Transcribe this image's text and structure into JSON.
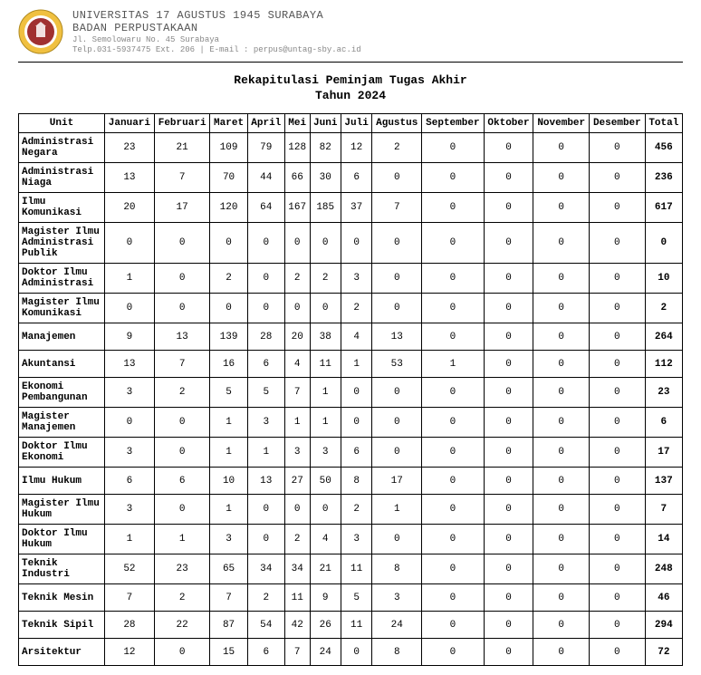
{
  "header": {
    "university": "UNIVERSITAS 17 AGUSTUS 1945 SURABAYA",
    "badan": "BADAN PERPUSTAKAAN",
    "address": "Jl. Semolowaru No. 45 Surabaya",
    "contact": "Telp.031-5937475 Ext. 206 | E-mail : perpus@untag-sby.ac.id",
    "logo_colors": {
      "outer": "#f0c040",
      "inner": "#a03030",
      "ring": "#ffffff"
    }
  },
  "report": {
    "title": "Rekapitulasi Peminjam Tugas Akhir",
    "year_label": "Tahun 2024"
  },
  "table": {
    "columns": [
      "Unit",
      "Januari",
      "Februari",
      "Maret",
      "April",
      "Mei",
      "Juni",
      "Juli",
      "Agustus",
      "September",
      "Oktober",
      "November",
      "Desember",
      "Total"
    ],
    "rows": [
      [
        "Administrasi Negara",
        23,
        21,
        109,
        79,
        128,
        82,
        12,
        2,
        0,
        0,
        0,
        0,
        456
      ],
      [
        "Administrasi Niaga",
        13,
        7,
        70,
        44,
        66,
        30,
        6,
        0,
        0,
        0,
        0,
        0,
        236
      ],
      [
        "Ilmu Komunikasi",
        20,
        17,
        120,
        64,
        167,
        185,
        37,
        7,
        0,
        0,
        0,
        0,
        617
      ],
      [
        "Magister Ilmu Administrasi Publik",
        0,
        0,
        0,
        0,
        0,
        0,
        0,
        0,
        0,
        0,
        0,
        0,
        0
      ],
      [
        "Doktor Ilmu Administrasi",
        1,
        0,
        2,
        0,
        2,
        2,
        3,
        0,
        0,
        0,
        0,
        0,
        10
      ],
      [
        "Magister Ilmu Komunikasi",
        0,
        0,
        0,
        0,
        0,
        0,
        2,
        0,
        0,
        0,
        0,
        0,
        2
      ],
      [
        "Manajemen",
        9,
        13,
        139,
        28,
        20,
        38,
        4,
        13,
        0,
        0,
        0,
        0,
        264
      ],
      [
        "Akuntansi",
        13,
        7,
        16,
        6,
        4,
        11,
        1,
        53,
        1,
        0,
        0,
        0,
        112
      ],
      [
        "Ekonomi Pembangunan",
        3,
        2,
        5,
        5,
        7,
        1,
        0,
        0,
        0,
        0,
        0,
        0,
        23
      ],
      [
        "Magister Manajemen",
        0,
        0,
        1,
        3,
        1,
        1,
        0,
        0,
        0,
        0,
        0,
        0,
        6
      ],
      [
        "Doktor Ilmu Ekonomi",
        3,
        0,
        1,
        1,
        3,
        3,
        6,
        0,
        0,
        0,
        0,
        0,
        17
      ],
      [
        "Ilmu Hukum",
        6,
        6,
        10,
        13,
        27,
        50,
        8,
        17,
        0,
        0,
        0,
        0,
        137
      ],
      [
        "Magister Ilmu Hukum",
        3,
        0,
        1,
        0,
        0,
        0,
        2,
        1,
        0,
        0,
        0,
        0,
        7
      ],
      [
        "Doktor Ilmu Hukum",
        1,
        1,
        3,
        0,
        2,
        4,
        3,
        0,
        0,
        0,
        0,
        0,
        14
      ],
      [
        "Teknik Industri",
        52,
        23,
        65,
        34,
        34,
        21,
        11,
        8,
        0,
        0,
        0,
        0,
        248
      ],
      [
        "Teknik Mesin",
        7,
        2,
        7,
        2,
        11,
        9,
        5,
        3,
        0,
        0,
        0,
        0,
        46
      ],
      [
        "Teknik Sipil",
        28,
        22,
        87,
        54,
        42,
        26,
        11,
        24,
        0,
        0,
        0,
        0,
        294
      ],
      [
        "Arsitektur",
        12,
        0,
        15,
        6,
        7,
        24,
        0,
        8,
        0,
        0,
        0,
        0,
        72
      ]
    ]
  }
}
